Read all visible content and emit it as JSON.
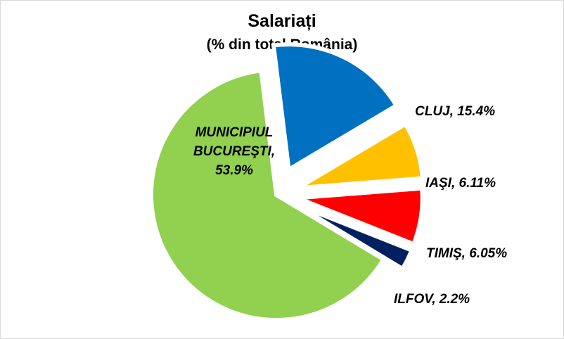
{
  "chart_data": {
    "type": "pie",
    "title": "Salariați",
    "subtitle": "(% din total România)",
    "slices": [
      {
        "label": "CLUJ, 15.4%",
        "name": "CLUJ",
        "value": 15.4,
        "color": "#0070c0"
      },
      {
        "label": "IAŞI, 6.11%",
        "name": "IAŞI",
        "value": 6.11,
        "color": "#ffc000"
      },
      {
        "label": "TIMIŞ, 6.05%",
        "name": "TIMIŞ",
        "value": 6.05,
        "color": "#ff0000"
      },
      {
        "label": "ILFOV, 2.2%",
        "name": "ILFOV",
        "value": 2.2,
        "color": "#002060"
      },
      {
        "label_lines": [
          "MUNICIPIUL",
          "BUCUREŞTI,",
          "53.9%"
        ],
        "name": "MUNICIPIUL BUCUREŞTI",
        "value": 53.9,
        "color": "#92d050"
      }
    ],
    "exploded": true,
    "legend": "none"
  }
}
